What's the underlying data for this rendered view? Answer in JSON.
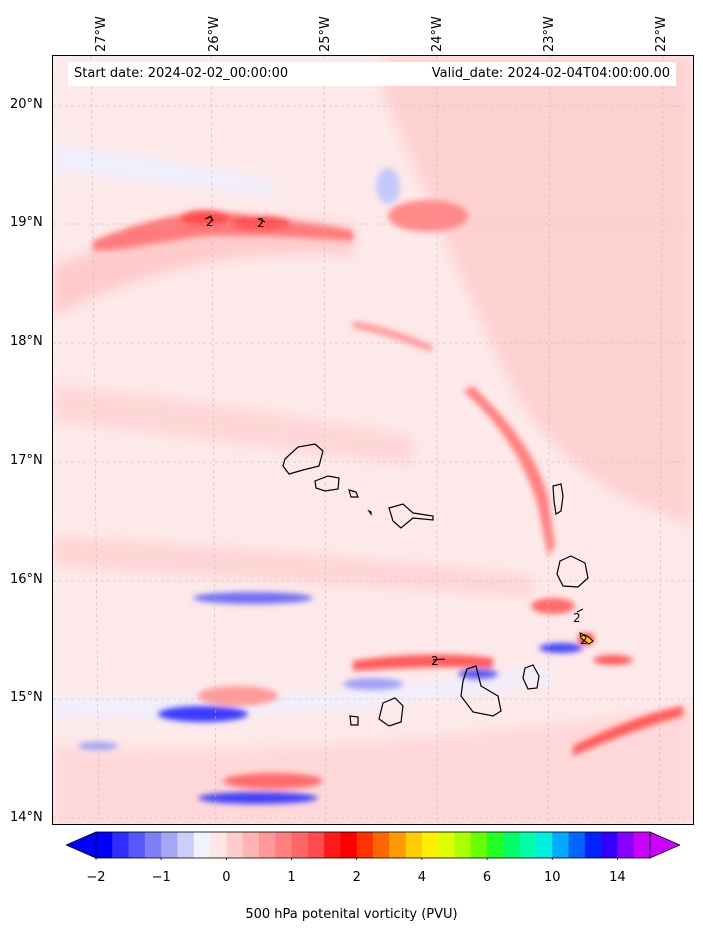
{
  "banner": {
    "start_date": "Start date: 2024-02-02_00:00:00",
    "valid_date": "Valid_date: 2024-02-04T04:00:00.00"
  },
  "lon_labels": [
    "27°W",
    "26°W",
    "25°W",
    "24°W",
    "23°W",
    "22°W"
  ],
  "lat_labels": [
    "20°N",
    "19°N",
    "18°N",
    "17°N",
    "16°N",
    "15°N",
    "14°N"
  ],
  "colorbar": {
    "label": "500 hPa potenital vorticity (PVU)",
    "ticks": [
      "−2",
      "−1",
      "0",
      "1",
      "2",
      "4",
      "6",
      "10",
      "14"
    ],
    "colors": [
      "#0000ff",
      "#2e2efe",
      "#5757fb",
      "#7f7ff8",
      "#a6a6f6",
      "#cdcdf9",
      "#f2f2fd",
      "#ffe6e6",
      "#ffcccc",
      "#ffb3b3",
      "#ff9999",
      "#ff7f7f",
      "#ff6666",
      "#ff4d4d",
      "#ff1a1a",
      "#ff0000",
      "#ff3300",
      "#ff6600",
      "#ff9900",
      "#ffcc00",
      "#ffee00",
      "#ddff00",
      "#aaff00",
      "#66ff00",
      "#22ff22",
      "#00ff66",
      "#00ffaa",
      "#00eedd",
      "#00aaff",
      "#0066ff",
      "#0022ff",
      "#3300ff",
      "#8800ff",
      "#cc00ff"
    ]
  },
  "contour_labels": [
    "2",
    "2",
    "2",
    "2",
    "2"
  ]
}
